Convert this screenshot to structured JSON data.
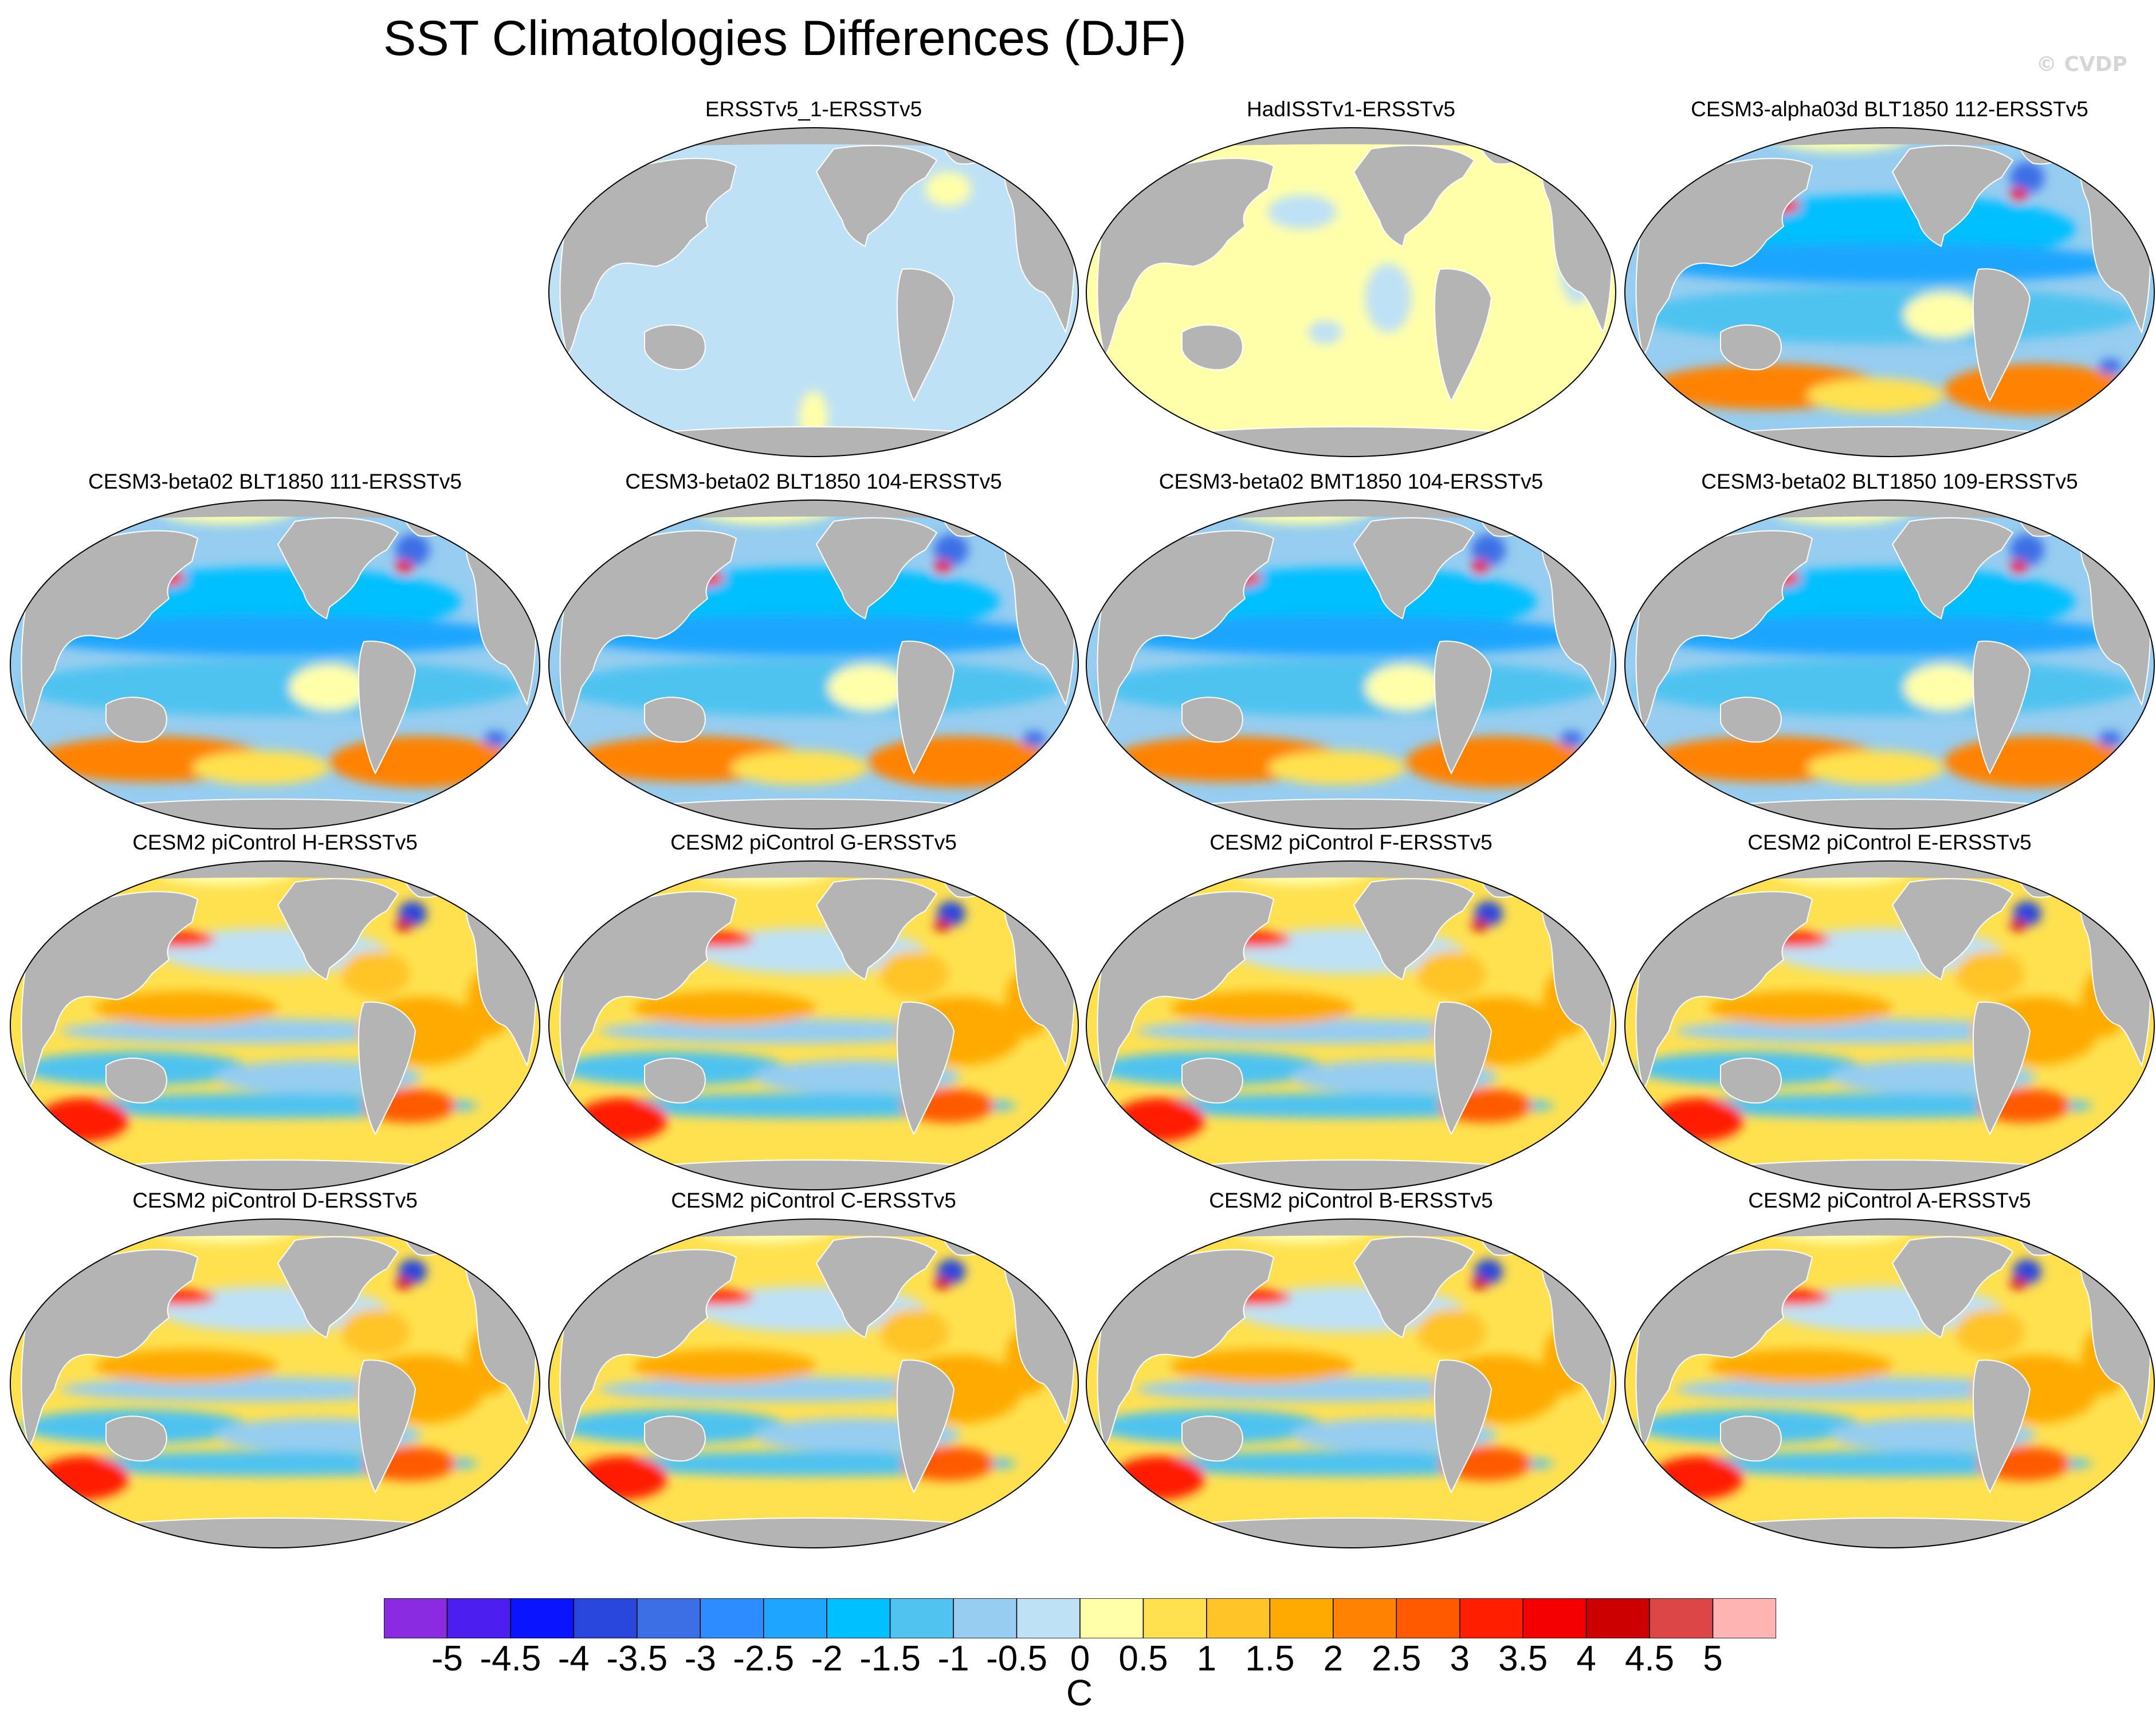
{
  "title": "SST Climatologies Differences (DJF)",
  "watermark": "© CVDP",
  "colors": {
    "land": "#b4b4b4",
    "ocean_outline": "#000000",
    "coast": "#ffffff"
  },
  "panels": [
    {
      "title": "ERSSTv5_1-ERSSTv5",
      "pattern": "uniform-neg"
    },
    {
      "title": "HadISSTv1-ERSSTv5",
      "pattern": "uniform-pos"
    },
    {
      "title": "CESM3-alpha03d BLT1850 112-ERSSTv5",
      "pattern": "cold-bias"
    },
    {
      "title": "CESM3-beta02 BLT1850 111-ERSSTv5",
      "pattern": "cold-bias"
    },
    {
      "title": "CESM3-beta02 BLT1850 104-ERSSTv5",
      "pattern": "cold-bias"
    },
    {
      "title": "CESM3-beta02 BMT1850 104-ERSSTv5",
      "pattern": "cold-bias"
    },
    {
      "title": "CESM3-beta02 BLT1850 109-ERSSTv5",
      "pattern": "cold-bias"
    },
    {
      "title": "CESM2 piControl H-ERSSTv5",
      "pattern": "warm-bias"
    },
    {
      "title": "CESM2 piControl G-ERSSTv5",
      "pattern": "warm-bias"
    },
    {
      "title": "CESM2 piControl F-ERSSTv5",
      "pattern": "warm-bias"
    },
    {
      "title": "CESM2 piControl E-ERSSTv5",
      "pattern": "warm-bias"
    },
    {
      "title": "CESM2 piControl D-ERSSTv5",
      "pattern": "warm-bias"
    },
    {
      "title": "CESM2 piControl C-ERSSTv5",
      "pattern": "warm-bias"
    },
    {
      "title": "CESM2 piControl B-ERSSTv5",
      "pattern": "warm-bias"
    },
    {
      "title": "CESM2 piControl A-ERSSTv5",
      "pattern": "warm-bias"
    }
  ],
  "colorbar": {
    "units": "C",
    "labels": [
      "-5",
      "-4.5",
      "-4",
      "-3.5",
      "-3",
      "-2.5",
      "-2",
      "-1.5",
      "-1",
      "-0.5",
      "0",
      "0.5",
      "1",
      "1.5",
      "2",
      "2.5",
      "3",
      "3.5",
      "4",
      "4.5",
      "5"
    ],
    "colors": [
      "#8a2be2",
      "#4c1ef0",
      "#0a14ff",
      "#2846dc",
      "#3c6ee6",
      "#2d8cff",
      "#1ea5ff",
      "#00bfff",
      "#50c3f0",
      "#96cdf0",
      "#bee1f5",
      "#ffffaa",
      "#ffe150",
      "#ffc328",
      "#ffaa00",
      "#ff8200",
      "#ff5a00",
      "#ff1e00",
      "#f50000",
      "#cd0000",
      "#dc4646",
      "#ffb4b4"
    ]
  }
}
